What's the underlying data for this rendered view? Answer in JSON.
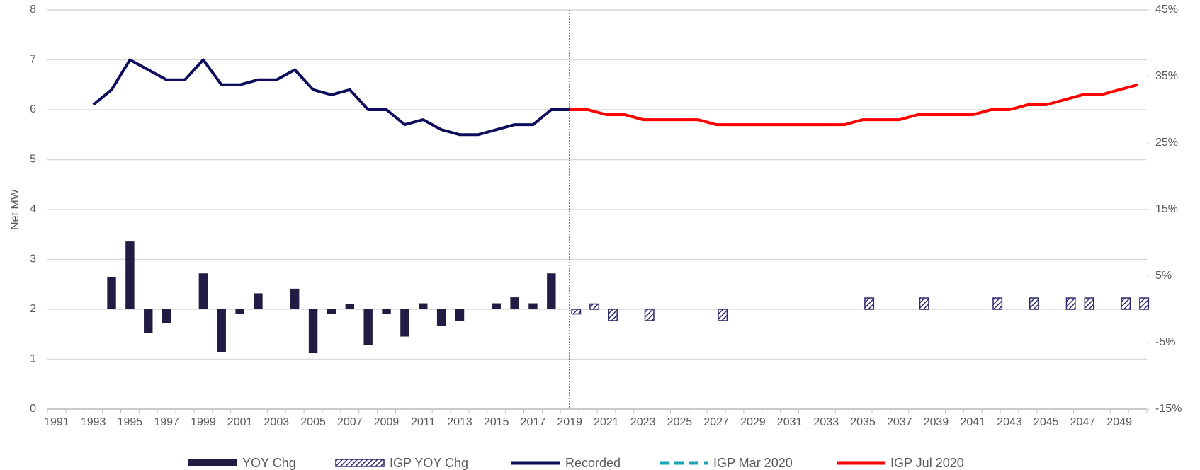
{
  "chart_data": {
    "type": "bar-line",
    "ylabel": "Net MW",
    "categories": [
      "1991",
      null,
      "1993",
      null,
      "1995",
      null,
      "1997",
      null,
      "1999",
      null,
      "2001",
      null,
      "2003",
      null,
      "2005",
      null,
      "2007",
      null,
      "2009",
      null,
      "2011",
      null,
      "2013",
      null,
      "2015",
      null,
      "2017",
      null,
      "2019",
      null,
      "2021",
      null,
      "2023",
      null,
      "2025",
      null,
      "2027",
      null,
      "2029",
      null,
      "2031",
      null,
      "2033",
      null,
      "2035",
      null,
      "2037",
      null,
      "2039",
      null,
      "2041",
      null,
      "2043",
      null,
      "2045",
      null,
      "2047",
      null,
      "2049",
      null
    ],
    "ylim": [
      0,
      8
    ],
    "yticks": [
      0,
      1,
      2,
      3,
      4,
      5,
      6,
      7,
      8
    ],
    "y2lim": [
      -15,
      45
    ],
    "y2ticks": [
      {
        "value": -15,
        "label": "-15%"
      },
      {
        "value": -5,
        "label": "-5%"
      },
      {
        "value": 5,
        "label": "5%"
      },
      {
        "value": 15,
        "label": "15%"
      },
      {
        "value": 25,
        "label": "25%"
      },
      {
        "value": 35,
        "label": "35%"
      },
      {
        "value": 45,
        "label": "45%"
      }
    ],
    "grid": true,
    "legend": "bottom",
    "series": [
      {
        "name": "YOY Chg",
        "type": "bar",
        "axis": "y2",
        "color": "#221c44",
        "hatch": false,
        "values": [
          null,
          null,
          null,
          4.8,
          10.2,
          -3.6,
          -2.1,
          null,
          5.4,
          -6.4,
          -0.7,
          2.4,
          null,
          3.1,
          -6.6,
          -0.7,
          0.8,
          -5.4,
          -0.7,
          -4.1,
          0.9,
          -2.5,
          -1.7,
          null,
          0.9,
          1.8,
          0.9,
          5.4,
          null,
          null,
          null,
          null,
          null,
          null,
          null,
          null,
          null,
          null,
          null,
          null,
          null,
          null,
          null,
          null,
          null,
          null,
          null,
          null,
          null,
          null,
          null,
          null,
          null,
          null,
          null,
          null,
          null,
          null,
          null,
          null
        ]
      },
      {
        "name": "IGP YOY Chg",
        "type": "bar",
        "axis": "y2",
        "color": "#2e2a6e",
        "hatch": true,
        "values": [
          null,
          null,
          null,
          null,
          null,
          null,
          null,
          null,
          null,
          null,
          null,
          null,
          null,
          null,
          null,
          null,
          null,
          null,
          null,
          null,
          null,
          null,
          null,
          null,
          null,
          null,
          null,
          null,
          -0.7,
          0.8,
          -1.7,
          null,
          -1.7,
          null,
          null,
          null,
          -1.7,
          null,
          null,
          null,
          null,
          null,
          null,
          null,
          1.7,
          null,
          null,
          1.7,
          null,
          null,
          null,
          1.7,
          null,
          1.7,
          null,
          1.7,
          1.7,
          null,
          1.7,
          1.7
        ]
      },
      {
        "name": "Recorded",
        "type": "line",
        "color": "#0d0d5c",
        "dashed": false,
        "values": [
          null,
          null,
          6.1,
          6.4,
          7.0,
          6.8,
          6.6,
          6.6,
          7.0,
          6.5,
          6.5,
          6.6,
          6.6,
          6.8,
          6.4,
          6.3,
          6.4,
          6.0,
          6.0,
          5.7,
          5.8,
          5.6,
          5.5,
          5.5,
          5.6,
          5.7,
          5.7,
          6.0,
          6.0,
          null,
          null,
          null,
          null,
          null,
          null,
          null,
          null,
          null,
          null,
          null,
          null,
          null,
          null,
          null,
          null,
          null,
          null,
          null,
          null,
          null,
          null,
          null,
          null,
          null,
          null,
          null,
          null,
          null,
          null,
          null
        ]
      },
      {
        "name": "IGP Mar 2020",
        "type": "line",
        "color": "#1ba3b5",
        "dashed": true,
        "values": [
          null,
          null,
          null,
          null,
          null,
          null,
          null,
          null,
          null,
          null,
          null,
          null,
          null,
          null,
          null,
          null,
          null,
          null,
          null,
          null,
          null,
          null,
          null,
          null,
          null,
          null,
          null,
          null,
          null,
          null,
          null,
          null,
          null,
          null,
          null,
          null,
          null,
          null,
          null,
          null,
          null,
          null,
          null,
          null,
          null,
          null,
          null,
          null,
          null,
          null,
          null,
          null,
          null,
          null,
          null,
          null,
          null,
          null,
          null,
          null
        ]
      },
      {
        "name": "IGP Jul 2020",
        "type": "line",
        "color": "#ff0000",
        "dashed": false,
        "values": [
          null,
          null,
          null,
          null,
          null,
          null,
          null,
          null,
          null,
          null,
          null,
          null,
          null,
          null,
          null,
          null,
          null,
          null,
          null,
          null,
          null,
          null,
          null,
          null,
          null,
          null,
          null,
          null,
          6.0,
          6.0,
          5.9,
          5.9,
          5.8,
          5.8,
          5.8,
          5.8,
          5.7,
          5.7,
          5.7,
          5.7,
          5.7,
          5.7,
          5.7,
          5.7,
          5.8,
          5.8,
          5.8,
          5.9,
          5.9,
          5.9,
          5.9,
          6.0,
          6.0,
          6.1,
          6.1,
          6.2,
          6.3,
          6.3,
          6.4,
          6.5
        ]
      }
    ]
  }
}
